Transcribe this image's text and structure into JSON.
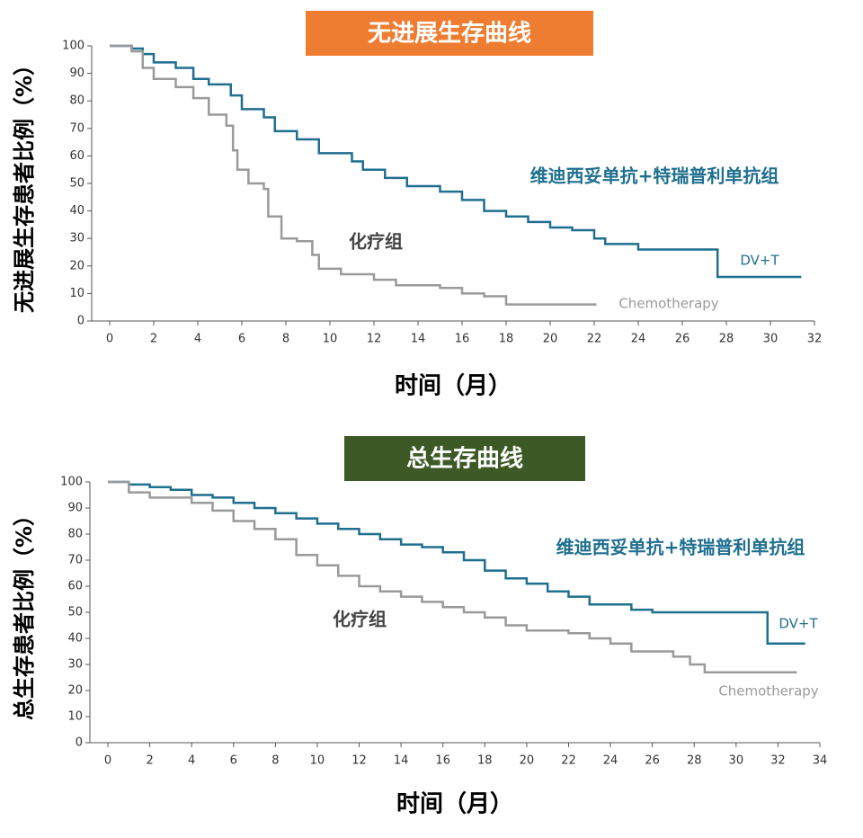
{
  "chart_data": [
    {
      "type": "line",
      "step": true,
      "title": "无进展生存曲线",
      "title_color": "#ee7d31",
      "ylabel": "无进展生存患者比例（%）",
      "xlabel": "时间（月）",
      "annotations": [
        "维迪西妥单抗+特瑞普利单抗组",
        "化疗组"
      ],
      "xlim": [
        0,
        32
      ],
      "ylim": [
        0,
        100
      ],
      "xticks": [
        0,
        2,
        4,
        6,
        8,
        10,
        12,
        14,
        16,
        18,
        20,
        22,
        24,
        26,
        28,
        30,
        32
      ],
      "yticks": [
        0,
        10,
        20,
        30,
        40,
        50,
        60,
        70,
        80,
        90,
        100
      ],
      "series": [
        {
          "name": "DV+T",
          "color": "#1f6f8f",
          "x": [
            0,
            1,
            1.5,
            2,
            3,
            3.8,
            4.5,
            5.5,
            6,
            7,
            7.5,
            8.5,
            9.5,
            11,
            11.5,
            12.5,
            13.5,
            15,
            16,
            17,
            18,
            19,
            20,
            21,
            22,
            22.5,
            24,
            27.6,
            31.4
          ],
          "values": [
            100,
            99,
            97,
            94,
            92,
            88,
            86,
            82,
            77,
            74,
            69,
            66,
            61,
            58,
            55,
            52,
            49,
            47,
            44,
            40,
            38,
            36,
            34,
            33,
            30,
            28,
            26,
            16,
            16
          ]
        },
        {
          "name": "Chemotherapy",
          "color": "#9a9a9a",
          "x": [
            0,
            1,
            1.5,
            2,
            3,
            3.8,
            4.5,
            5.3,
            5.6,
            5.8,
            6.3,
            7,
            7.2,
            7.8,
            8.5,
            9.2,
            9.5,
            10.5,
            12,
            13,
            15,
            16,
            17,
            18,
            22.1
          ],
          "values": [
            100,
            98,
            92,
            88,
            85,
            81,
            75,
            71,
            62,
            55,
            50,
            48,
            38,
            30,
            29,
            24,
            19,
            17,
            15,
            13,
            12,
            10,
            9,
            6,
            6
          ]
        }
      ]
    },
    {
      "type": "line",
      "step": true,
      "title": "总生存曲线",
      "title_color": "#3d5a26",
      "ylabel": "总生存患者比例（%）",
      "xlabel": "时间（月）",
      "annotations": [
        "维迪西妥单抗+特瑞普利单抗组",
        "化疗组"
      ],
      "xlim": [
        0,
        34
      ],
      "ylim": [
        0,
        100
      ],
      "xticks": [
        0,
        2,
        4,
        6,
        8,
        10,
        12,
        14,
        16,
        18,
        20,
        22,
        24,
        26,
        28,
        30,
        32,
        34
      ],
      "yticks": [
        0,
        10,
        20,
        30,
        40,
        50,
        60,
        70,
        80,
        90,
        100
      ],
      "series": [
        {
          "name": "DV+T",
          "color": "#1f6f8f",
          "x": [
            0,
            1,
            2,
            3,
            4,
            5,
            6,
            7,
            8,
            9,
            10,
            11,
            12,
            13,
            14,
            15,
            16,
            17,
            18,
            19,
            20,
            21,
            22,
            23,
            25,
            26,
            31.5,
            33.3
          ],
          "values": [
            100,
            99,
            98,
            97,
            95,
            94,
            92,
            90,
            88,
            86,
            84,
            82,
            80,
            78,
            76,
            75,
            73,
            70,
            66,
            63,
            61,
            58,
            56,
            53,
            51,
            50,
            38,
            38
          ]
        },
        {
          "name": "Chemotherapy",
          "color": "#9a9a9a",
          "x": [
            0,
            1,
            2,
            4,
            5,
            6,
            7,
            8,
            9,
            10,
            11,
            12,
            13,
            14,
            15,
            16,
            17,
            18,
            19,
            20,
            22,
            23,
            24,
            25,
            27,
            27.8,
            28.5,
            32.9
          ],
          "values": [
            100,
            96,
            94,
            92,
            89,
            85,
            82,
            78,
            72,
            68,
            64,
            60,
            58,
            56,
            54,
            52,
            50,
            48,
            45,
            43,
            42,
            40,
            38,
            35,
            33,
            30,
            27,
            27
          ]
        }
      ]
    }
  ]
}
